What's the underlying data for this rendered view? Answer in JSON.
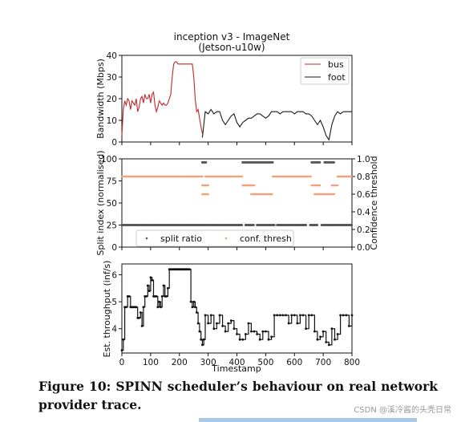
{
  "figure": {
    "caption": "Figure 10: SPINN scheduler’s behaviour on real network provider trace.",
    "watermark": "CSDN @溪冷酱的头秃日常"
  },
  "colors": {
    "bus": "#c0282a",
    "foot": "#1a1a1a",
    "split": "#555555",
    "thresh": "#f4a07a"
  },
  "chart_data": [
    {
      "type": "line",
      "title": "inception v3 - ImageNet",
      "subtitle": "(Jetson-u10w)",
      "xlabel": "",
      "ylabel": "Bandwidth (Mbps)",
      "xlim": [
        0,
        800
      ],
      "ylim": [
        0,
        40
      ],
      "yticks": [
        0,
        10,
        20,
        30,
        40
      ],
      "legend_position": "top-right",
      "series": [
        {
          "name": "bus",
          "x": [
            0,
            5,
            10,
            15,
            20,
            25,
            30,
            35,
            40,
            45,
            50,
            55,
            60,
            65,
            70,
            75,
            80,
            85,
            90,
            95,
            100,
            105,
            110,
            115,
            120,
            125,
            130,
            135,
            140,
            145,
            150,
            155,
            160,
            165,
            170,
            175,
            180,
            185,
            190,
            195,
            200,
            205,
            210,
            215,
            220,
            225,
            230,
            235,
            240,
            245,
            250,
            255,
            260,
            265,
            270,
            275,
            280
          ],
          "y": [
            3,
            15,
            19,
            17,
            20,
            19,
            15,
            19,
            18,
            17,
            20,
            14,
            16,
            20,
            21,
            18,
            22,
            20,
            20,
            22,
            18,
            22,
            23,
            17,
            14,
            16,
            19,
            18,
            17,
            18,
            17,
            17,
            18,
            20,
            22,
            30,
            36,
            37,
            37,
            36,
            36,
            36,
            36,
            36,
            36,
            36,
            36,
            36,
            36,
            36,
            30,
            20,
            14,
            15,
            11,
            7,
            4
          ]
        },
        {
          "name": "foot",
          "x": [
            280,
            290,
            300,
            310,
            320,
            330,
            340,
            350,
            360,
            370,
            380,
            390,
            400,
            410,
            420,
            430,
            440,
            450,
            460,
            470,
            480,
            490,
            500,
            510,
            520,
            530,
            540,
            550,
            560,
            570,
            580,
            590,
            600,
            610,
            620,
            630,
            640,
            650,
            660,
            670,
            680,
            690,
            700,
            710,
            720,
            730,
            740,
            750,
            760,
            770,
            780,
            790,
            800
          ],
          "y": [
            2,
            14,
            13,
            15,
            13,
            14,
            14,
            10,
            8,
            10,
            12,
            13,
            9,
            7,
            9,
            10,
            11,
            11,
            12,
            13,
            13,
            12,
            11,
            12,
            14,
            14,
            14,
            13,
            14,
            14,
            14,
            14,
            13,
            14,
            14,
            14,
            13,
            13,
            12,
            10,
            8,
            10,
            7,
            3,
            1,
            8,
            12,
            14,
            13,
            14,
            14,
            14,
            14
          ]
        }
      ]
    },
    {
      "type": "scatter",
      "xlabel": "",
      "ylabel": "Split index (normalised)",
      "ylabel_right": "Confidence threshold",
      "xlim": [
        0,
        800
      ],
      "ylim": [
        0,
        100
      ],
      "ylim_right": [
        0,
        1.0
      ],
      "yticks": [
        0,
        25,
        50,
        75,
        100
      ],
      "yticks_right": [
        "0.0",
        "0.2",
        "0.4",
        "0.6",
        "0.8",
        "1.0"
      ],
      "legend_position": "bottom",
      "series": [
        {
          "name": "split ratio",
          "segments": [
            {
              "x": [
                0,
                280
              ],
              "y": 25
            },
            {
              "x": [
                280,
                300
              ],
              "y": 25
            },
            {
              "x": [
                305,
                420
              ],
              "y": 25
            },
            {
              "x": [
                430,
                460
              ],
              "y": 25
            },
            {
              "x": [
                470,
                530
              ],
              "y": 25
            },
            {
              "x": [
                540,
                640
              ],
              "y": 25
            },
            {
              "x": [
                655,
                680
              ],
              "y": 25
            },
            {
              "x": [
                695,
                800
              ],
              "y": 25
            },
            {
              "x": [
                280,
                295
              ],
              "y": 96
            },
            {
              "x": [
                420,
                525
              ],
              "y": 96
            },
            {
              "x": [
                660,
                690
              ],
              "y": 96
            },
            {
              "x": [
                705,
                740
              ],
              "y": 96
            }
          ]
        },
        {
          "name": "conf. thresh",
          "segments": [
            {
              "x": [
                0,
                280
              ],
              "y": 0.8
            },
            {
              "x": [
                290,
                420
              ],
              "y": 0.8
            },
            {
              "x": [
                525,
                660
              ],
              "y": 0.8
            },
            {
              "x": [
                750,
                800
              ],
              "y": 0.8
            },
            {
              "x": [
                280,
                300
              ],
              "y": 0.7
            },
            {
              "x": [
                280,
                300
              ],
              "y": 0.6
            },
            {
              "x": [
                420,
                460
              ],
              "y": 0.7
            },
            {
              "x": [
                450,
                525
              ],
              "y": 0.6
            },
            {
              "x": [
                660,
                690
              ],
              "y": 0.7
            },
            {
              "x": [
                670,
                740
              ],
              "y": 0.6
            },
            {
              "x": [
                730,
                750
              ],
              "y": 0.7
            }
          ]
        }
      ]
    },
    {
      "type": "line",
      "xlabel": "Timestamp",
      "ylabel": "Est. throughput (inf/s)",
      "xlim": [
        0,
        800
      ],
      "ylim": [
        3.1,
        6.4
      ],
      "xticks": [
        0,
        100,
        200,
        300,
        400,
        500,
        600,
        700,
        800
      ],
      "yticks": [
        4,
        5,
        6
      ],
      "series": [
        {
          "name": "",
          "x": [
            0,
            5,
            10,
            15,
            20,
            25,
            30,
            35,
            40,
            45,
            50,
            55,
            60,
            65,
            70,
            75,
            80,
            85,
            90,
            95,
            100,
            105,
            110,
            115,
            120,
            125,
            130,
            135,
            140,
            145,
            150,
            155,
            160,
            165,
            170,
            175,
            180,
            185,
            190,
            195,
            200,
            205,
            210,
            215,
            220,
            225,
            230,
            235,
            240,
            245,
            250,
            255,
            260,
            265,
            270,
            275,
            280,
            285,
            290,
            300,
            310,
            320,
            330,
            340,
            350,
            360,
            370,
            380,
            390,
            400,
            410,
            420,
            430,
            440,
            450,
            460,
            470,
            480,
            490,
            500,
            510,
            520,
            530,
            540,
            550,
            560,
            570,
            580,
            590,
            600,
            610,
            620,
            630,
            640,
            650,
            660,
            670,
            680,
            690,
            700,
            710,
            720,
            730,
            740,
            750,
            760,
            770,
            780,
            790,
            800
          ],
          "y": [
            3.2,
            3.6,
            4.8,
            4.8,
            5.2,
            5.2,
            4.8,
            4.8,
            4.8,
            4.8,
            4.8,
            4.4,
            4.4,
            4.6,
            4.1,
            4.8,
            5.2,
            5.2,
            5.6,
            5.4,
            5.9,
            5.8,
            5.2,
            5.2,
            5.2,
            4.8,
            5.0,
            4.8,
            5.2,
            5.6,
            5.2,
            5.2,
            5.5,
            6.2,
            6.2,
            6.2,
            6.2,
            6.2,
            6.2,
            6.2,
            6.2,
            6.2,
            6.2,
            6.2,
            6.2,
            6.2,
            6.2,
            6.2,
            5.0,
            4.8,
            5.0,
            4.8,
            4.6,
            4.2,
            3.9,
            3.6,
            3.4,
            3.6,
            4.5,
            4.2,
            4.5,
            4.0,
            4.2,
            4.5,
            4.1,
            3.9,
            4.2,
            4.3,
            4.0,
            3.8,
            3.6,
            3.6,
            3.8,
            4.2,
            3.9,
            3.9,
            3.8,
            3.6,
            3.9,
            3.9,
            3.6,
            3.7,
            4.5,
            4.5,
            4.5,
            4.5,
            4.5,
            4.2,
            4.5,
            4.5,
            4.2,
            4.5,
            4.5,
            4.0,
            4.5,
            4.5,
            3.9,
            3.6,
            3.7,
            3.9,
            3.5,
            3.4,
            4.0,
            3.6,
            3.8,
            4.5,
            4.5,
            4.5,
            4.1,
            4.5
          ]
        }
      ]
    }
  ]
}
